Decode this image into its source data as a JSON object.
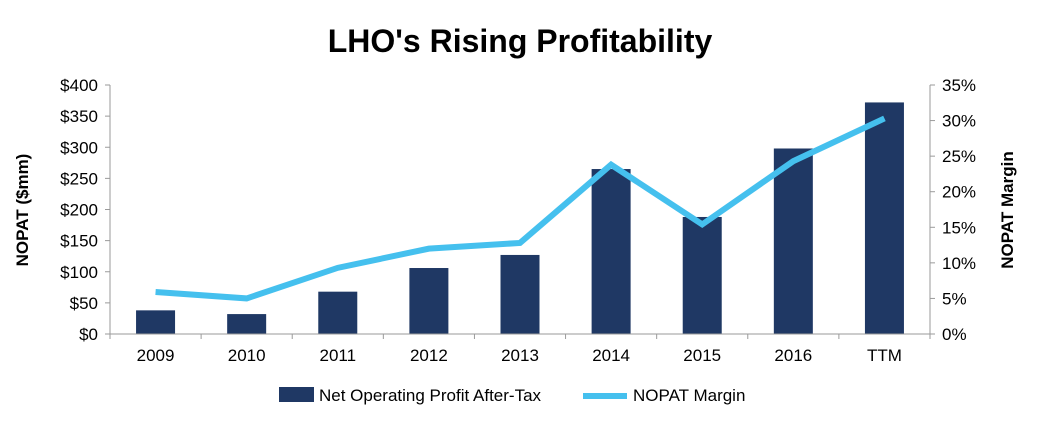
{
  "chart_data": {
    "type": "bar",
    "title": "LHO's Rising Profitability",
    "categories": [
      "2009",
      "2010",
      "2011",
      "2012",
      "2013",
      "2014",
      "2015",
      "2016",
      "TTM"
    ],
    "series": [
      {
        "name": "Net Operating Profit After-Tax",
        "type": "bar",
        "axis": "left",
        "color": "#1f3864",
        "values": [
          38,
          32,
          68,
          106,
          127,
          265,
          188,
          298,
          372
        ]
      },
      {
        "name": "NOPAT Margin",
        "type": "line",
        "axis": "right",
        "color": "#45c0ee",
        "values": [
          5.9,
          5.0,
          9.3,
          12.0,
          12.8,
          23.8,
          15.4,
          24.3,
          30.3
        ]
      }
    ],
    "ylabel": "NOPAT ($mm)",
    "y2label": "NOPAT Margin",
    "ylim": [
      0,
      400
    ],
    "y2lim": [
      0,
      35
    ],
    "yticks": [
      "$0",
      "$50",
      "$100",
      "$150",
      "$200",
      "$250",
      "$300",
      "$350",
      "$400"
    ],
    "y2ticks": [
      "0%",
      "5%",
      "10%",
      "15%",
      "20%",
      "25%",
      "30%",
      "35%"
    ],
    "legend_position": "bottom",
    "grid": false
  }
}
